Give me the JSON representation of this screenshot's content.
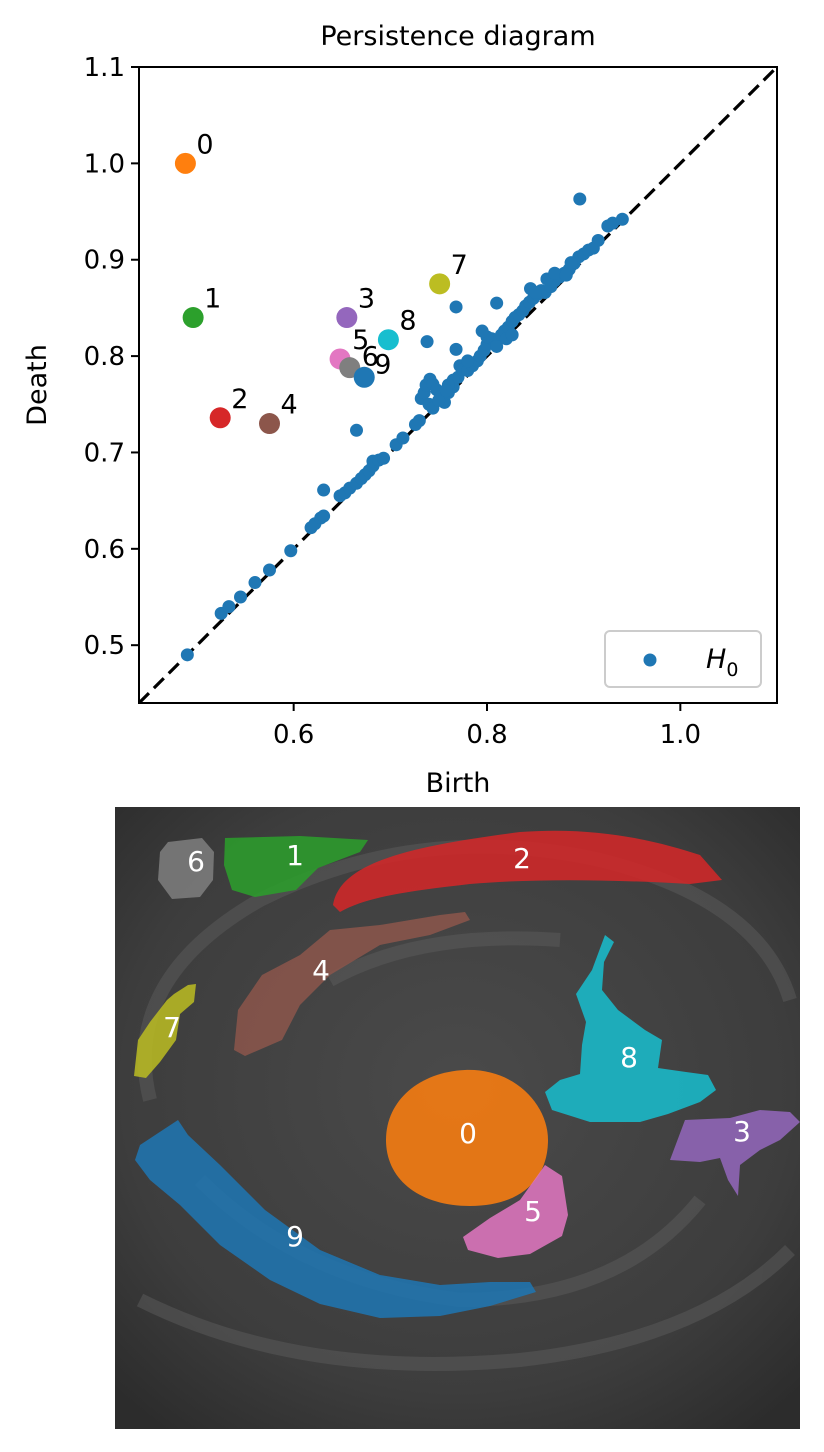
{
  "chart_data": {
    "type": "scatter",
    "title": "Persistence diagram",
    "xlabel": "Birth",
    "ylabel": "Death",
    "xlim": [
      0.44,
      1.1
    ],
    "ylim": [
      0.44,
      1.1
    ],
    "xticks": [
      0.6,
      0.8,
      1.0
    ],
    "xtick_labels": [
      "0.6",
      "0.8",
      "1.0"
    ],
    "yticks": [
      0.5,
      0.6,
      0.7,
      0.8,
      0.9,
      1.0,
      1.1
    ],
    "ytick_labels": [
      "0.5",
      "0.6",
      "0.7",
      "0.8",
      "0.9",
      "1.0",
      "1.1"
    ],
    "legend": {
      "label": "H",
      "subscript": "0",
      "position": "lower-right"
    },
    "diagonal": "dashed",
    "series": [
      {
        "name": "H0",
        "color": "#1f77b4",
        "points": [
          [
            0.49,
            0.49
          ],
          [
            0.525,
            0.533
          ],
          [
            0.533,
            0.54
          ],
          [
            0.545,
            0.55
          ],
          [
            0.56,
            0.565
          ],
          [
            0.575,
            0.578
          ],
          [
            0.597,
            0.598
          ],
          [
            0.618,
            0.622
          ],
          [
            0.622,
            0.626
          ],
          [
            0.628,
            0.632
          ],
          [
            0.631,
            0.634
          ],
          [
            0.631,
            0.661
          ],
          [
            0.648,
            0.655
          ],
          [
            0.653,
            0.658
          ],
          [
            0.658,
            0.663
          ],
          [
            0.665,
            0.668
          ],
          [
            0.67,
            0.673
          ],
          [
            0.674,
            0.677
          ],
          [
            0.678,
            0.681
          ],
          [
            0.682,
            0.686
          ],
          [
            0.682,
            0.691
          ],
          [
            0.688,
            0.692
          ],
          [
            0.693,
            0.694
          ],
          [
            0.706,
            0.708
          ],
          [
            0.713,
            0.715
          ],
          [
            0.726,
            0.729
          ],
          [
            0.73,
            0.733
          ],
          [
            0.732,
            0.756
          ],
          [
            0.735,
            0.762
          ],
          [
            0.737,
            0.77
          ],
          [
            0.741,
            0.776
          ],
          [
            0.744,
            0.771
          ],
          [
            0.748,
            0.765
          ],
          [
            0.752,
            0.758
          ],
          [
            0.756,
            0.752
          ],
          [
            0.74,
            0.75
          ],
          [
            0.744,
            0.746
          ],
          [
            0.75,
            0.754
          ],
          [
            0.76,
            0.762
          ],
          [
            0.765,
            0.768
          ],
          [
            0.77,
            0.778
          ],
          [
            0.765,
            0.775
          ],
          [
            0.772,
            0.79
          ],
          [
            0.768,
            0.807
          ],
          [
            0.775,
            0.786
          ],
          [
            0.78,
            0.785
          ],
          [
            0.785,
            0.79
          ],
          [
            0.79,
            0.795
          ],
          [
            0.793,
            0.8
          ],
          [
            0.797,
            0.806
          ],
          [
            0.8,
            0.812
          ],
          [
            0.805,
            0.818
          ],
          [
            0.81,
            0.816
          ],
          [
            0.815,
            0.822
          ],
          [
            0.818,
            0.826
          ],
          [
            0.822,
            0.83
          ],
          [
            0.826,
            0.836
          ],
          [
            0.829,
            0.84
          ],
          [
            0.833,
            0.843
          ],
          [
            0.837,
            0.847
          ],
          [
            0.84,
            0.852
          ],
          [
            0.844,
            0.856
          ],
          [
            0.848,
            0.86
          ],
          [
            0.852,
            0.864
          ],
          [
            0.856,
            0.868
          ],
          [
            0.86,
            0.866
          ],
          [
            0.866,
            0.872
          ],
          [
            0.87,
            0.878
          ],
          [
            0.875,
            0.882
          ],
          [
            0.88,
            0.886
          ],
          [
            0.885,
            0.89
          ],
          [
            0.89,
            0.896
          ],
          [
            0.895,
            0.903
          ],
          [
            0.9,
            0.906
          ],
          [
            0.905,
            0.91
          ],
          [
            0.91,
            0.912
          ],
          [
            0.915,
            0.92
          ],
          [
            0.925,
            0.935
          ],
          [
            0.93,
            0.938
          ],
          [
            0.94,
            0.942
          ],
          [
            0.896,
            0.963
          ],
          [
            0.768,
            0.851
          ],
          [
            0.81,
            0.855
          ],
          [
            0.738,
            0.815
          ],
          [
            0.665,
            0.723
          ],
          [
            0.845,
            0.87
          ],
          [
            0.85,
            0.866
          ],
          [
            0.81,
            0.81
          ],
          [
            0.82,
            0.818
          ],
          [
            0.826,
            0.822
          ],
          [
            0.8,
            0.82
          ],
          [
            0.795,
            0.826
          ],
          [
            0.78,
            0.795
          ],
          [
            0.76,
            0.77
          ],
          [
            0.758,
            0.764
          ],
          [
            0.862,
            0.88
          ],
          [
            0.87,
            0.886
          ],
          [
            0.882,
            0.884
          ],
          [
            0.887,
            0.897
          ]
        ]
      }
    ],
    "highlighted": [
      {
        "label": "0",
        "x": 0.488,
        "y": 1.0,
        "color": "#ff7f0e"
      },
      {
        "label": "1",
        "x": 0.496,
        "y": 0.84,
        "color": "#2ca02c"
      },
      {
        "label": "2",
        "x": 0.524,
        "y": 0.736,
        "color": "#d62728"
      },
      {
        "label": "3",
        "x": 0.655,
        "y": 0.84,
        "color": "#9467bd"
      },
      {
        "label": "4",
        "x": 0.575,
        "y": 0.73,
        "color": "#8c564b"
      },
      {
        "label": "5",
        "x": 0.648,
        "y": 0.797,
        "color": "#e377c2"
      },
      {
        "label": "6",
        "x": 0.658,
        "y": 0.788,
        "color": "#7f7f7f"
      },
      {
        "label": "7",
        "x": 0.751,
        "y": 0.875,
        "color": "#bcbd22"
      },
      {
        "label": "8",
        "x": 0.698,
        "y": 0.817,
        "color": "#17becf"
      },
      {
        "label": "9",
        "x": 0.673,
        "y": 0.778,
        "color": "#1f77b4"
      }
    ]
  },
  "segmentation": {
    "regions": [
      {
        "label": "0",
        "color": "#ff7f0e"
      },
      {
        "label": "1",
        "color": "#2ca02c"
      },
      {
        "label": "2",
        "color": "#d62728"
      },
      {
        "label": "3",
        "color": "#9467bd"
      },
      {
        "label": "4",
        "color": "#8c564b"
      },
      {
        "label": "5",
        "color": "#e377c2"
      },
      {
        "label": "6",
        "color": "#7f7f7f"
      },
      {
        "label": "7",
        "color": "#bcbd22"
      },
      {
        "label": "8",
        "color": "#17becf"
      },
      {
        "label": "9",
        "color": "#1f77b4"
      }
    ]
  }
}
